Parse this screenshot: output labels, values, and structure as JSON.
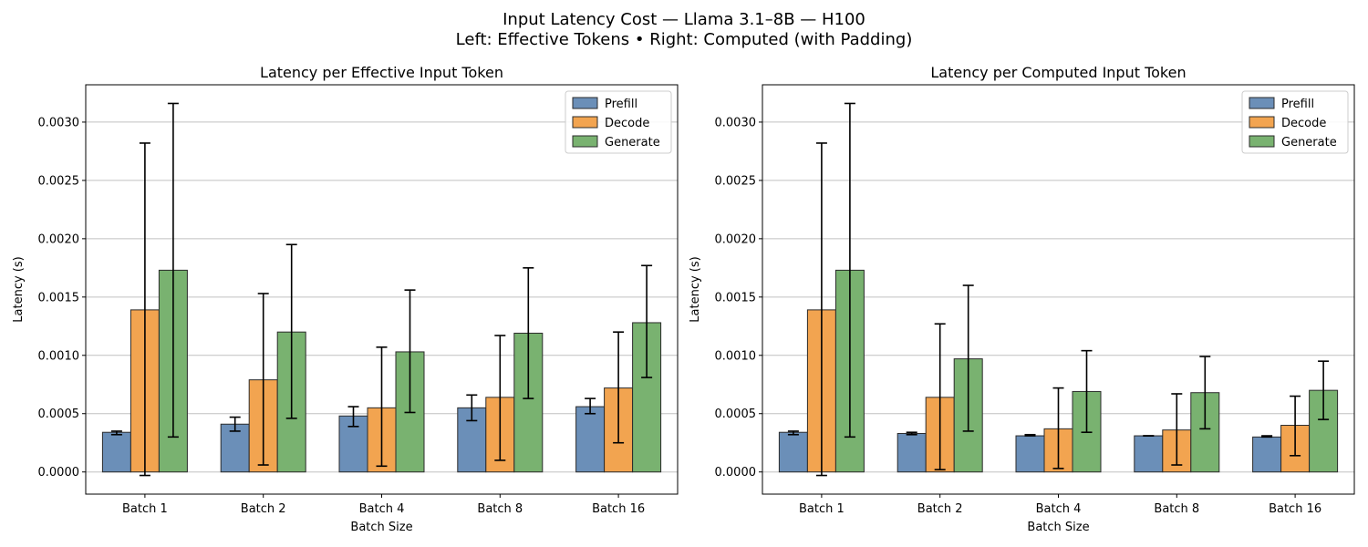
{
  "figure": {
    "title_line1": "Input Latency Cost — Llama 3.1–8B — H100",
    "title_line2": "Left: Effective Tokens • Right: Computed (with Padding)"
  },
  "colors": {
    "Prefill": "#6b8fb8",
    "Decode": "#f2a450",
    "Generate": "#79b270",
    "grid": "#c0c0c0"
  },
  "chart_data": [
    {
      "type": "bar",
      "title": "Latency per Effective Input Token",
      "xlabel": "Batch Size",
      "ylabel": "Latency (s)",
      "ylim": [
        -0.00019,
        0.00332
      ],
      "yticks": [
        "0.0000",
        "0.0005",
        "0.0010",
        "0.0015",
        "0.0020",
        "0.0025",
        "0.0030"
      ],
      "ytick_values": [
        0,
        0.0005,
        0.001,
        0.0015,
        0.002,
        0.0025,
        0.003
      ],
      "grid": "y",
      "legend_position": "top-right",
      "categories": [
        "Batch 1",
        "Batch 2",
        "Batch 4",
        "Batch 8",
        "Batch 16"
      ],
      "series": [
        {
          "name": "Prefill",
          "values": [
            0.00034,
            0.00041,
            0.00048,
            0.00055,
            0.00056
          ],
          "err_low": [
            0.00032,
            0.00035,
            0.00039,
            0.00044,
            0.0005
          ],
          "err_high": [
            0.00035,
            0.00047,
            0.00056,
            0.00066,
            0.00063
          ]
        },
        {
          "name": "Decode",
          "values": [
            0.00139,
            0.00079,
            0.00055,
            0.00064,
            0.00072
          ],
          "err_low": [
            -3e-05,
            6e-05,
            5e-05,
            0.0001,
            0.00025
          ],
          "err_high": [
            0.00282,
            0.00153,
            0.00107,
            0.00117,
            0.0012
          ]
        },
        {
          "name": "Generate",
          "values": [
            0.00173,
            0.0012,
            0.00103,
            0.00119,
            0.00128
          ],
          "err_low": [
            0.0003,
            0.00046,
            0.00051,
            0.00063,
            0.00081
          ],
          "err_high": [
            0.00316,
            0.00195,
            0.00156,
            0.00175,
            0.00177
          ]
        }
      ]
    },
    {
      "type": "bar",
      "title": "Latency per Computed Input Token",
      "xlabel": "Batch Size",
      "ylabel": "Latency (s)",
      "ylim": [
        -0.00019,
        0.00332
      ],
      "yticks": [
        "0.0000",
        "0.0005",
        "0.0010",
        "0.0015",
        "0.0020",
        "0.0025",
        "0.0030"
      ],
      "ytick_values": [
        0,
        0.0005,
        0.001,
        0.0015,
        0.002,
        0.0025,
        0.003
      ],
      "grid": "y",
      "legend_position": "top-right",
      "categories": [
        "Batch 1",
        "Batch 2",
        "Batch 4",
        "Batch 8",
        "Batch 16"
      ],
      "series": [
        {
          "name": "Prefill",
          "values": [
            0.00034,
            0.00033,
            0.00031,
            0.00031,
            0.0003
          ],
          "err_low": [
            0.00032,
            0.00032,
            0.00031,
            0.00031,
            0.0003
          ],
          "err_high": [
            0.00035,
            0.00034,
            0.00032,
            0.00031,
            0.00031
          ]
        },
        {
          "name": "Decode",
          "values": [
            0.00139,
            0.00064,
            0.00037,
            0.00036,
            0.0004
          ],
          "err_low": [
            -3e-05,
            2e-05,
            3e-05,
            6e-05,
            0.00014
          ],
          "err_high": [
            0.00282,
            0.00127,
            0.00072,
            0.00067,
            0.00065
          ]
        },
        {
          "name": "Generate",
          "values": [
            0.00173,
            0.00097,
            0.00069,
            0.00068,
            0.0007
          ],
          "err_low": [
            0.0003,
            0.00035,
            0.00034,
            0.00037,
            0.00045
          ],
          "err_high": [
            0.00316,
            0.0016,
            0.00104,
            0.00099,
            0.00095
          ]
        }
      ]
    }
  ]
}
